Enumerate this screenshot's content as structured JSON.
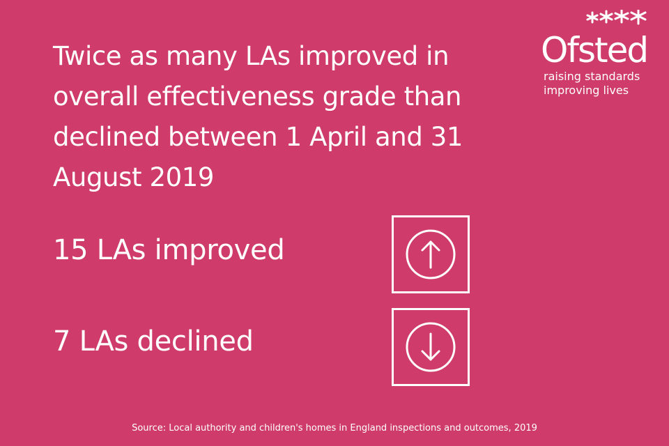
{
  "headline": "Twice as many LAs improved in overall effectiveness grade than declined between 1 April and 31 August 2019",
  "logo": {
    "name": "Ofsted",
    "tagline_line1": "raising standards",
    "tagline_line2": "improving lives",
    "icon": "stars-icon"
  },
  "stats": {
    "improved": {
      "label": "15 LAs improved",
      "icon": "arrow-up-circle-icon"
    },
    "declined": {
      "label": "7 LAs declined",
      "icon": "arrow-down-circle-icon"
    }
  },
  "source": "Source: Local authority and children's homes in England inspections and outcomes, 2019",
  "colors": {
    "background": "#cf3c6b",
    "foreground": "#ffffff"
  }
}
